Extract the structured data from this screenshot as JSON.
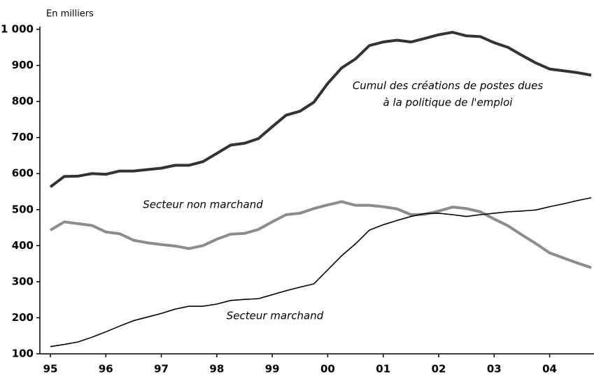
{
  "chart_data": {
    "type": "line",
    "y_label": "En milliers",
    "annotations": [
      "Cumul des créations de postes dues",
      "à la politique de l'emploi",
      "Secteur non marchand",
      "Secteur marchand"
    ],
    "x": [
      1995,
      1995.25,
      1995.5,
      1995.75,
      1996,
      1996.25,
      1996.5,
      1996.75,
      1997,
      1997.25,
      1997.5,
      1997.75,
      1998,
      1998.25,
      1998.5,
      1998.75,
      1999,
      1999.25,
      1999.5,
      1999.75,
      2000,
      2000.25,
      2000.5,
      2000.75,
      2001,
      2001.25,
      2001.5,
      2001.75,
      2002,
      2002.25,
      2002.5,
      2002.75,
      2003,
      2003.25,
      2003.5,
      2003.75,
      2004,
      2004.25,
      2004.5,
      2004.75
    ],
    "series": [
      {
        "name": "Cumul des créations de postes dues à la politique de l'emploi",
        "color": "#333333",
        "width": 4,
        "values": [
          563,
          592,
          593,
          600,
          598,
          607,
          607,
          611,
          615,
          623,
          623,
          633,
          656,
          679,
          684,
          697,
          730,
          762,
          773,
          798,
          850,
          893,
          918,
          955,
          965,
          970,
          965,
          975,
          985,
          992,
          982,
          980,
          963,
          950,
          928,
          907,
          890,
          885,
          880,
          873
        ]
      },
      {
        "name": "Secteur non marchand",
        "color": "#8c8c8c",
        "width": 4,
        "values": [
          443,
          466,
          461,
          456,
          438,
          433,
          415,
          408,
          403,
          399,
          392,
          400,
          418,
          432,
          434,
          445,
          466,
          486,
          490,
          503,
          513,
          522,
          512,
          512,
          508,
          502,
          486,
          487,
          496,
          507,
          503,
          494,
          474,
          455,
          430,
          406,
          380,
          366,
          352,
          339
        ]
      },
      {
        "name": "Secteur marchand",
        "color": "#000000",
        "width": 1.6,
        "values": [
          120,
          126,
          133,
          146,
          161,
          177,
          192,
          202,
          212,
          224,
          232,
          232,
          238,
          248,
          251,
          253,
          264,
          275,
          285,
          294,
          333,
          372,
          405,
          443,
          458,
          470,
          481,
          489,
          490,
          486,
          481,
          486,
          490,
          494,
          496,
          499,
          508,
          516,
          525,
          533
        ]
      }
    ],
    "xlim": [
      1995,
      2004.8
    ],
    "xticks": [
      {
        "value": 1995,
        "label": "95"
      },
      {
        "value": 1996,
        "label": "96"
      },
      {
        "value": 1997,
        "label": "97"
      },
      {
        "value": 1998,
        "label": "98"
      },
      {
        "value": 1999,
        "label": "99"
      },
      {
        "value": 2000,
        "label": "00"
      },
      {
        "value": 2001,
        "label": "01"
      },
      {
        "value": 2002,
        "label": "02"
      },
      {
        "value": 2003,
        "label": "03"
      },
      {
        "value": 2004,
        "label": "04"
      }
    ],
    "ylim": [
      100,
      1000
    ],
    "yticks": [
      100,
      200,
      300,
      400,
      500,
      600,
      700,
      800,
      900,
      {
        "value": 1000,
        "label": "1 000"
      }
    ]
  }
}
